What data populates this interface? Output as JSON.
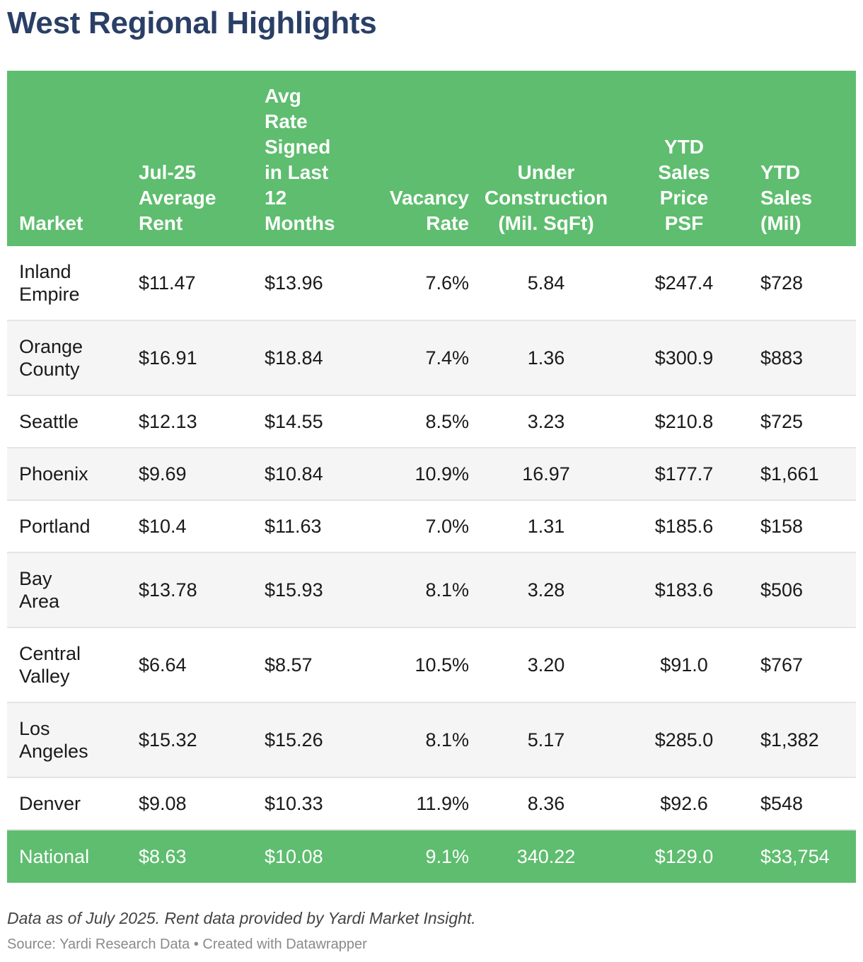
{
  "title": "West Regional Highlights",
  "colors": {
    "header_bg": "#5ebd6e",
    "title": "#2a3f66",
    "stripe": "#f5f5f5"
  },
  "chart_data": {
    "type": "table",
    "columns": [
      "Market",
      "Jul-25\nAverage\nRent",
      "Avg\nRate\nSigned\nin Last\n12\nMonths",
      "Vacancy\nRate",
      "Under\nConstruction\n(Mil. SqFt)",
      "YTD\nSales\nPrice\nPSF",
      "YTD\nSales\n(Mil)"
    ],
    "rows": [
      [
        "Inland\nEmpire",
        "$11.47",
        "$13.96",
        "7.6%",
        "5.84",
        "$247.4",
        "$728"
      ],
      [
        "Orange\nCounty",
        "$16.91",
        "$18.84",
        "7.4%",
        "1.36",
        "$300.9",
        "$883"
      ],
      [
        "Seattle",
        "$12.13",
        "$14.55",
        "8.5%",
        "3.23",
        "$210.8",
        "$725"
      ],
      [
        "Phoenix",
        "$9.69",
        "$10.84",
        "10.9%",
        "16.97",
        "$177.7",
        "$1,661"
      ],
      [
        "Portland",
        "$10.4",
        "$11.63",
        "7.0%",
        "1.31",
        "$185.6",
        "$158"
      ],
      [
        "Bay\nArea",
        "$13.78",
        "$15.93",
        "8.1%",
        "3.28",
        "$183.6",
        "$506"
      ],
      [
        "Central\nValley",
        "$6.64",
        "$8.57",
        "10.5%",
        "3.20",
        "$91.0",
        "$767"
      ],
      [
        "Los\nAngeles",
        "$15.32",
        "$15.26",
        "8.1%",
        "5.17",
        "$285.0",
        "$1,382"
      ],
      [
        "Denver",
        "$9.08",
        "$10.33",
        "11.9%",
        "8.36",
        "$92.6",
        "$548"
      ]
    ],
    "summary_row": [
      "National",
      "$8.63",
      "$10.08",
      "9.1%",
      "340.22",
      "$129.0",
      "$33,754"
    ]
  },
  "footer": {
    "note": "Data as of July 2025. Rent data provided by Yardi Market Insight.",
    "source": "Source: Yardi Research Data • Created with Datawrapper"
  }
}
